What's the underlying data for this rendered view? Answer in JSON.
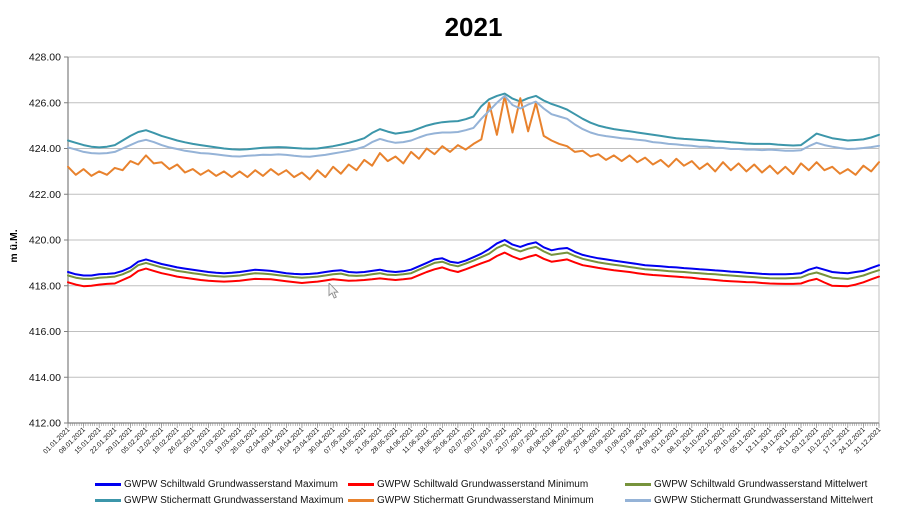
{
  "chart_data": {
    "type": "line",
    "title": "2021",
    "ylabel": "m ü.M.",
    "ylim": [
      412,
      428
    ],
    "ytick_step": 2,
    "yticks": [
      412,
      414,
      416,
      418,
      420,
      422,
      424,
      426,
      428
    ],
    "grid": "horizontal",
    "legend_position": "bottom",
    "x_tick_interval": "weekly",
    "minor_ticks": "daily",
    "samples_per_week": 2,
    "x_labels": [
      "01.01.2021",
      "08.01.2021",
      "15.01.2021",
      "22.01.2021",
      "29.01.2021",
      "05.02.2021",
      "12.02.2021",
      "19.02.2021",
      "26.02.2021",
      "05.03.2021",
      "12.03.2021",
      "19.03.2021",
      "26.03.2021",
      "02.04.2021",
      "09.04.2021",
      "16.04.2021",
      "23.04.2021",
      "30.04.2021",
      "07.05.2021",
      "14.05.2021",
      "21.05.2021",
      "28.05.2021",
      "04.06.2021",
      "11.06.2021",
      "18.06.2021",
      "25.06.2021",
      "02.07.2021",
      "09.07.2021",
      "16.07.2021",
      "23.07.2021",
      "30.07.2021",
      "06.08.2021",
      "13.08.2021",
      "20.08.2021",
      "27.08.2021",
      "03.09.2021",
      "10.09.2021",
      "17.09.2021",
      "24.09.2021",
      "01.10.2021",
      "08.10.2021",
      "15.10.2021",
      "22.10.2021",
      "29.10.2021",
      "05.11.2021",
      "12.11.2021",
      "19.11.2021",
      "26.11.2021",
      "03.12.2021",
      "10.12.2021",
      "17.12.2021",
      "24.12.2021",
      "31.12.2021"
    ],
    "series": [
      {
        "id": "schiltwald-max",
        "name": "GWPW Schiltwald Grundwasserstand Maximum",
        "color": "#0000F0",
        "values": [
          418.6,
          418.5,
          418.45,
          418.45,
          418.5,
          418.52,
          418.55,
          418.65,
          418.8,
          419.05,
          419.15,
          419.05,
          418.95,
          418.88,
          418.8,
          418.75,
          418.7,
          418.65,
          418.6,
          418.57,
          418.55,
          418.57,
          418.6,
          418.65,
          418.7,
          418.68,
          418.65,
          418.6,
          418.55,
          418.52,
          418.5,
          418.52,
          418.55,
          418.6,
          418.65,
          418.68,
          418.6,
          418.58,
          418.6,
          418.65,
          418.7,
          418.63,
          418.6,
          418.63,
          418.7,
          418.85,
          419.0,
          419.15,
          419.2,
          419.05,
          419.0,
          419.1,
          419.25,
          419.4,
          419.6,
          419.85,
          420.0,
          419.8,
          419.7,
          419.82,
          419.9,
          419.68,
          419.55,
          419.62,
          419.65,
          419.48,
          419.35,
          419.27,
          419.2,
          419.15,
          419.1,
          419.05,
          419.0,
          418.95,
          418.9,
          418.87,
          418.85,
          418.82,
          418.8,
          418.77,
          418.75,
          418.72,
          418.7,
          418.67,
          418.65,
          418.62,
          418.6,
          418.57,
          418.55,
          418.52,
          418.5,
          418.5,
          418.5,
          418.52,
          418.55,
          418.7,
          418.8,
          418.7,
          418.6,
          418.57,
          418.55,
          418.6,
          418.65,
          418.78,
          418.9
        ]
      },
      {
        "id": "schiltwald-min",
        "name": "GWPW Schiltwald Grundwasserstand Minimum",
        "color": "#FF0000",
        "values": [
          418.15,
          418.05,
          417.98,
          418.0,
          418.05,
          418.08,
          418.1,
          418.25,
          418.4,
          418.65,
          418.75,
          418.65,
          418.55,
          418.48,
          418.4,
          418.35,
          418.3,
          418.25,
          418.22,
          418.2,
          418.18,
          418.2,
          418.22,
          418.26,
          418.3,
          418.29,
          418.28,
          418.24,
          418.2,
          418.16,
          418.12,
          418.15,
          418.18,
          418.23,
          418.28,
          418.25,
          418.22,
          418.23,
          418.25,
          418.28,
          418.32,
          418.28,
          418.25,
          418.28,
          418.32,
          418.46,
          418.6,
          418.72,
          418.8,
          418.68,
          418.6,
          418.72,
          418.85,
          418.98,
          419.1,
          419.3,
          419.45,
          419.28,
          419.15,
          419.26,
          419.35,
          419.18,
          419.05,
          419.1,
          419.15,
          419.02,
          418.9,
          418.84,
          418.78,
          418.73,
          418.68,
          418.64,
          418.6,
          418.55,
          418.5,
          418.47,
          418.45,
          418.42,
          418.4,
          418.37,
          418.35,
          418.31,
          418.28,
          418.25,
          418.22,
          418.2,
          418.18,
          418.16,
          418.15,
          418.12,
          418.1,
          418.09,
          418.08,
          418.08,
          418.1,
          418.22,
          418.3,
          418.14,
          418.0,
          417.99,
          417.98,
          418.05,
          418.15,
          418.28,
          418.4
        ]
      },
      {
        "id": "schiltwald-mittelwert",
        "name": "GWPW Schiltwald Grundwasserstand Mittelwert",
        "color": "#77933C",
        "values": [
          418.45,
          418.35,
          418.3,
          418.3,
          418.35,
          418.37,
          418.4,
          418.5,
          418.65,
          418.9,
          419.0,
          418.9,
          418.8,
          418.73,
          418.65,
          418.6,
          418.55,
          418.5,
          418.45,
          418.42,
          418.4,
          418.42,
          418.45,
          418.5,
          418.55,
          418.53,
          418.5,
          418.46,
          418.42,
          418.38,
          418.35,
          418.37,
          418.4,
          418.45,
          418.5,
          418.53,
          418.45,
          418.43,
          418.45,
          418.5,
          418.55,
          418.48,
          418.47,
          418.5,
          418.55,
          418.7,
          418.85,
          419.0,
          419.05,
          418.92,
          418.85,
          418.97,
          419.1,
          419.25,
          419.4,
          419.65,
          419.8,
          419.62,
          419.5,
          419.62,
          419.7,
          419.5,
          419.35,
          419.4,
          419.45,
          419.3,
          419.18,
          419.1,
          419.02,
          418.97,
          418.92,
          418.87,
          418.82,
          418.77,
          418.72,
          418.7,
          418.67,
          418.64,
          418.62,
          418.6,
          418.57,
          418.55,
          418.52,
          418.5,
          418.47,
          418.45,
          418.42,
          418.4,
          418.38,
          418.35,
          418.33,
          418.32,
          418.32,
          418.34,
          418.36,
          418.5,
          418.58,
          418.47,
          418.35,
          418.32,
          418.3,
          418.37,
          418.45,
          418.57,
          418.68
        ]
      },
      {
        "id": "stichermatt-max",
        "name": "GWPW Stichermatt Grundwasserstand Maximum",
        "color": "#3C96AA",
        "values": [
          424.35,
          424.25,
          424.15,
          424.08,
          424.05,
          424.08,
          424.15,
          424.35,
          424.55,
          424.72,
          424.8,
          424.68,
          424.55,
          424.45,
          424.35,
          424.27,
          424.2,
          424.15,
          424.1,
          424.05,
          424.0,
          423.97,
          423.95,
          423.97,
          424.0,
          424.03,
          424.05,
          424.06,
          424.05,
          424.02,
          424.0,
          423.99,
          424.0,
          424.05,
          424.1,
          424.17,
          424.25,
          424.34,
          424.45,
          424.68,
          424.85,
          424.74,
          424.65,
          424.7,
          424.75,
          424.88,
          425.0,
          425.09,
          425.15,
          425.18,
          425.2,
          425.28,
          425.4,
          425.85,
          426.15,
          426.3,
          426.4,
          426.18,
          426.05,
          426.2,
          426.3,
          426.1,
          425.95,
          425.83,
          425.7,
          425.5,
          425.3,
          425.13,
          425.0,
          424.92,
          424.85,
          424.8,
          424.75,
          424.7,
          424.65,
          424.6,
          424.55,
          424.5,
          424.45,
          424.42,
          424.4,
          424.37,
          424.35,
          424.32,
          424.3,
          424.27,
          424.25,
          424.22,
          424.2,
          424.2,
          424.2,
          424.17,
          424.15,
          424.13,
          424.15,
          424.4,
          424.65,
          424.55,
          424.45,
          424.4,
          424.35,
          424.37,
          424.4,
          424.48,
          424.6
        ]
      },
      {
        "id": "stichermatt-min",
        "name": "GWPW Stichermatt Grundwasserstand Minimum",
        "color": "#E8822D",
        "values": [
          423.2,
          422.85,
          423.1,
          422.8,
          423.0,
          422.85,
          423.15,
          423.05,
          423.45,
          423.3,
          423.7,
          423.35,
          423.4,
          423.1,
          423.3,
          422.95,
          423.1,
          422.85,
          423.05,
          422.8,
          423.0,
          422.75,
          423.0,
          422.75,
          423.05,
          422.8,
          423.1,
          422.85,
          423.05,
          422.75,
          422.95,
          422.65,
          423.05,
          422.75,
          423.2,
          422.9,
          423.3,
          423.05,
          423.5,
          423.25,
          423.8,
          423.45,
          423.65,
          423.35,
          423.85,
          423.55,
          424.0,
          423.75,
          424.1,
          423.85,
          424.15,
          423.95,
          424.2,
          424.4,
          426.0,
          424.6,
          426.3,
          424.7,
          426.2,
          424.75,
          426.0,
          424.55,
          424.35,
          424.2,
          424.1,
          423.85,
          423.9,
          423.65,
          423.75,
          423.5,
          423.7,
          423.45,
          423.7,
          423.4,
          423.6,
          423.3,
          423.5,
          423.2,
          423.55,
          423.25,
          423.45,
          423.1,
          423.35,
          423.0,
          423.4,
          423.05,
          423.35,
          423.0,
          423.3,
          422.95,
          423.25,
          422.9,
          423.2,
          422.88,
          423.35,
          423.05,
          423.4,
          423.05,
          423.2,
          422.9,
          423.1,
          422.85,
          423.25,
          423.0,
          423.4
        ]
      },
      {
        "id": "stichermatt-mittelwert",
        "name": "GWPW Stichermatt Grundwasserstand Mittelwert",
        "color": "#95B3D7",
        "values": [
          424.05,
          423.95,
          423.85,
          423.8,
          423.78,
          423.8,
          423.85,
          424.0,
          424.15,
          424.3,
          424.38,
          424.28,
          424.15,
          424.05,
          423.98,
          423.9,
          423.85,
          423.8,
          423.78,
          423.74,
          423.7,
          423.66,
          423.65,
          423.68,
          423.7,
          423.73,
          423.72,
          423.74,
          423.72,
          423.68,
          423.65,
          423.64,
          423.68,
          423.72,
          423.78,
          423.84,
          423.9,
          423.98,
          424.08,
          424.28,
          424.42,
          424.32,
          424.25,
          424.28,
          424.35,
          424.48,
          424.6,
          424.66,
          424.7,
          424.7,
          424.72,
          424.8,
          424.9,
          425.3,
          425.65,
          426.0,
          426.3,
          425.9,
          425.75,
          425.92,
          426.05,
          425.75,
          425.5,
          425.4,
          425.3,
          425.05,
          424.85,
          424.7,
          424.6,
          424.54,
          424.5,
          424.45,
          424.42,
          424.38,
          424.35,
          424.28,
          424.25,
          424.2,
          424.18,
          424.14,
          424.12,
          424.08,
          424.08,
          424.03,
          424.02,
          423.98,
          423.98,
          423.95,
          423.95,
          423.93,
          423.95,
          423.93,
          423.9,
          423.9,
          423.92,
          424.1,
          424.25,
          424.15,
          424.08,
          424.02,
          423.98,
          423.99,
          424.02,
          424.06,
          424.12
        ]
      }
    ]
  },
  "colors": {
    "gridline": "#BFBFBF",
    "axis": "#7F7F7F",
    "plot_right_border": "#BFBFBF"
  }
}
